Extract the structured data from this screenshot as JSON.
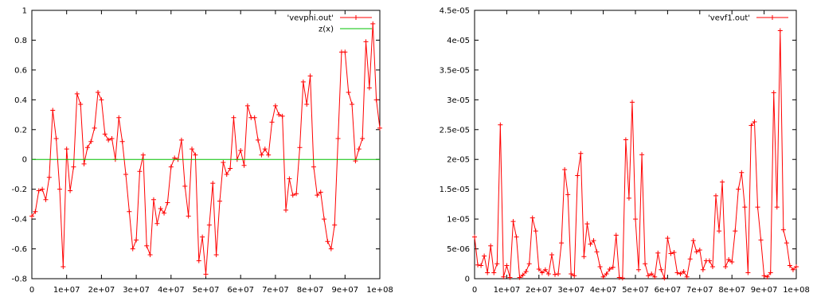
{
  "chart_data": [
    {
      "type": "line",
      "title": "",
      "xlabel": "",
      "ylabel": "",
      "xlim": [
        0,
        100000000
      ],
      "ylim": [
        -0.8,
        1
      ],
      "xticks": [
        "0",
        "1e+07",
        "2e+07",
        "3e+07",
        "4e+07",
        "5e+07",
        "6e+07",
        "7e+07",
        "8e+07",
        "9e+07",
        "1e+08"
      ],
      "xtick_values": [
        0,
        10000000,
        20000000,
        30000000,
        40000000,
        50000000,
        60000000,
        70000000,
        80000000,
        90000000,
        100000000
      ],
      "yticks": [
        "-0.8",
        "-0.6",
        "-0.4",
        "-0.2",
        "0",
        "0.2",
        "0.4",
        "0.6",
        "0.8",
        "1"
      ],
      "ytick_values": [
        -0.8,
        -0.6,
        -0.4,
        -0.2,
        0,
        0.2,
        0.4,
        0.6,
        0.8,
        1
      ],
      "grid": false,
      "legend_position": "top-right",
      "series": [
        {
          "name": "'vevphi.out'",
          "color": "#ff0000",
          "marker": "plus",
          "x": [
            0,
            1000000,
            2000000,
            3000000,
            4000000,
            5000000,
            6000000,
            7000000,
            8000000,
            9000000,
            10000000,
            11000000,
            12000000,
            13000000,
            14000000,
            15000000,
            16000000,
            17000000,
            18000000,
            19000000,
            20000000,
            21000000,
            22000000,
            23000000,
            24000000,
            25000000,
            26000000,
            27000000,
            28000000,
            29000000,
            30000000,
            31000000,
            32000000,
            33000000,
            34000000,
            35000000,
            36000000,
            37000000,
            38000000,
            39000000,
            40000000,
            41000000,
            42000000,
            43000000,
            44000000,
            45000000,
            46000000,
            47000000,
            48000000,
            49000000,
            50000000,
            51000000,
            52000000,
            53000000,
            54000000,
            55000000,
            56000000,
            57000000,
            58000000,
            59000000,
            60000000,
            61000000,
            62000000,
            63000000,
            64000000,
            65000000,
            66000000,
            67000000,
            68000000,
            69000000,
            70000000,
            71000000,
            72000000,
            73000000,
            74000000,
            75000000,
            76000000,
            77000000,
            78000000,
            79000000,
            80000000,
            81000000,
            82000000,
            83000000,
            84000000,
            85000000,
            86000000,
            87000000,
            88000000,
            89000000,
            90000000,
            91000000,
            92000000,
            93000000,
            94000000,
            95000000,
            96000000,
            97000000,
            98000000,
            99000000,
            100000000
          ],
          "y": [
            -0.38,
            -0.35,
            -0.21,
            -0.2,
            -0.27,
            -0.12,
            0.33,
            0.14,
            -0.2,
            -0.72,
            0.07,
            -0.21,
            -0.05,
            0.44,
            0.37,
            -0.03,
            0.08,
            0.12,
            0.21,
            0.45,
            0.4,
            0.17,
            0.13,
            0.14,
            0.0,
            0.28,
            0.12,
            -0.1,
            -0.35,
            -0.6,
            -0.54,
            -0.08,
            0.03,
            -0.58,
            -0.64,
            -0.27,
            -0.43,
            -0.33,
            -0.36,
            -0.29,
            -0.05,
            0.01,
            0.0,
            0.13,
            -0.18,
            -0.38,
            0.07,
            0.03,
            -0.68,
            -0.52,
            -0.77,
            -0.44,
            -0.16,
            -0.64,
            -0.28,
            -0.02,
            -0.1,
            -0.06,
            0.28,
            0.0,
            0.06,
            -0.04,
            0.36,
            0.28,
            0.28,
            0.13,
            0.03,
            0.07,
            0.03,
            0.25,
            0.36,
            0.3,
            0.29,
            -0.34,
            -0.13,
            -0.24,
            -0.23,
            0.08,
            0.52,
            0.37,
            0.56,
            -0.05,
            -0.24,
            -0.22,
            -0.4,
            -0.55,
            -0.6,
            -0.44,
            0.14,
            0.72,
            0.72,
            0.45,
            0.37,
            -0.01,
            0.07,
            0.14,
            0.79,
            0.48,
            0.91,
            0.4,
            0.21
          ]
        },
        {
          "name": "z(x)",
          "color": "#00c000",
          "marker": "none",
          "x": [
            0,
            100000000
          ],
          "y": [
            0,
            0
          ]
        }
      ]
    },
    {
      "type": "line",
      "title": "",
      "xlabel": "",
      "ylabel": "",
      "xlim": [
        0,
        100000000
      ],
      "ylim": [
        0,
        4.5e-05
      ],
      "xticks": [
        "0",
        "1e+07",
        "2e+07",
        "3e+07",
        "4e+07",
        "5e+07",
        "6e+07",
        "7e+07",
        "8e+07",
        "9e+07",
        "1e+08"
      ],
      "xtick_values": [
        0,
        10000000,
        20000000,
        30000000,
        40000000,
        50000000,
        60000000,
        70000000,
        80000000,
        90000000,
        100000000
      ],
      "yticks": [
        "0",
        "5e-06",
        "1e-05",
        "1.5e-05",
        "2e-05",
        "2.5e-05",
        "3e-05",
        "3.5e-05",
        "4e-05",
        "4.5e-05"
      ],
      "ytick_values": [
        0,
        5e-06,
        1e-05,
        1.5e-05,
        2e-05,
        2.5e-05,
        3e-05,
        3.5e-05,
        4e-05,
        4.5e-05
      ],
      "grid": false,
      "legend_position": "top-right",
      "series": [
        {
          "name": "'vevf1.out'",
          "color": "#ff0000",
          "marker": "plus",
          "x": [
            0,
            1000000,
            2000000,
            3000000,
            4000000,
            5000000,
            6000000,
            7000000,
            8000000,
            9000000,
            10000000,
            11000000,
            12000000,
            13000000,
            14000000,
            15000000,
            16000000,
            17000000,
            18000000,
            19000000,
            20000000,
            21000000,
            22000000,
            23000000,
            24000000,
            25000000,
            26000000,
            27000000,
            28000000,
            29000000,
            30000000,
            31000000,
            32000000,
            33000000,
            34000000,
            35000000,
            36000000,
            37000000,
            38000000,
            39000000,
            40000000,
            41000000,
            42000000,
            43000000,
            44000000,
            45000000,
            46000000,
            47000000,
            48000000,
            49000000,
            50000000,
            51000000,
            52000000,
            53000000,
            54000000,
            55000000,
            56000000,
            57000000,
            58000000,
            59000000,
            60000000,
            61000000,
            62000000,
            63000000,
            64000000,
            65000000,
            66000000,
            67000000,
            68000000,
            69000000,
            70000000,
            71000000,
            72000000,
            73000000,
            74000000,
            75000000,
            76000000,
            77000000,
            78000000,
            79000000,
            80000000,
            81000000,
            82000000,
            83000000,
            84000000,
            85000000,
            86000000,
            87000000,
            88000000,
            89000000,
            90000000,
            91000000,
            92000000,
            93000000,
            94000000,
            95000000,
            96000000,
            97000000,
            98000000,
            99000000,
            100000000
          ],
          "y": [
            7e-06,
            2.3e-06,
            2.2e-06,
            3.8e-06,
            1e-06,
            5.5e-06,
            1e-06,
            2.5e-06,
            2.58e-05,
            3e-07,
            2.2e-06,
            2e-07,
            9.6e-06,
            7e-06,
            2e-07,
            6e-07,
            1.2e-06,
            2.5e-06,
            1.02e-05,
            8e-06,
            1.6e-06,
            1e-06,
            1.5e-06,
            8e-07,
            4e-06,
            7e-07,
            8e-07,
            6e-06,
            1.83e-05,
            1.41e-05,
            8e-07,
            5e-07,
            1.73e-05,
            2.1e-05,
            3.7e-06,
            9.2e-06,
            5.8e-06,
            6.4e-06,
            4.5e-06,
            2e-06,
            3e-07,
            8e-07,
            1.6e-06,
            1.9e-06,
            7.3e-06,
            2e-07,
            1e-07,
            2.33e-05,
            1.35e-05,
            2.96e-05,
            1e-05,
            1.5e-06,
            2.08e-05,
            2.5e-06,
            5e-07,
            8e-07,
            3e-07,
            4.3e-06,
            1.5e-06,
            1e-07,
            6.8e-06,
            4.2e-06,
            4.4e-06,
            1e-06,
            8e-07,
            1.2e-06,
            3e-07,
            3.3e-06,
            6.4e-06,
            4.5e-06,
            4.8e-06,
            1.5e-06,
            3e-06,
            3e-06,
            2e-06,
            1.39e-05,
            8e-06,
            1.62e-05,
            2e-06,
            3.2e-06,
            2.8e-06,
            8e-06,
            1.5e-05,
            1.78e-05,
            1.2e-05,
            1e-06,
            2.57e-05,
            2.63e-05,
            1.2e-05,
            6.5e-06,
            5e-07,
            3e-07,
            1e-06,
            3.12e-05,
            1.2e-05,
            4.16e-05,
            8.2e-06,
            6e-06,
            2.2e-06,
            1.5e-06,
            2e-06
          ]
        }
      ]
    }
  ]
}
